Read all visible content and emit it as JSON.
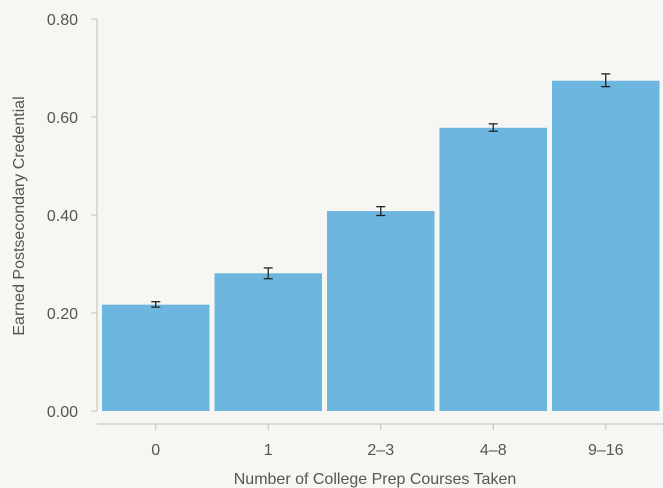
{
  "chart_data": {
    "type": "bar",
    "title": "",
    "xlabel": "Number of College Prep Courses Taken",
    "ylabel": "Earned Postsecondary Credential",
    "categories": [
      "0",
      "1",
      "2–3",
      "4–8",
      "9–16"
    ],
    "values": [
      0.217,
      0.281,
      0.408,
      0.578,
      0.674
    ],
    "error_low": [
      0.212,
      0.27,
      0.399,
      0.571,
      0.662
    ],
    "error_high": [
      0.223,
      0.292,
      0.417,
      0.586,
      0.688
    ],
    "ylim": [
      0,
      0.8
    ],
    "yticks": [
      "0.00",
      "0.20",
      "0.40",
      "0.60",
      "0.80"
    ],
    "ytick_values": [
      0,
      0.2,
      0.4,
      0.6,
      0.8
    ],
    "grid": false,
    "bar_color": "#6cb6df",
    "background_color": "#f6f6f2"
  }
}
